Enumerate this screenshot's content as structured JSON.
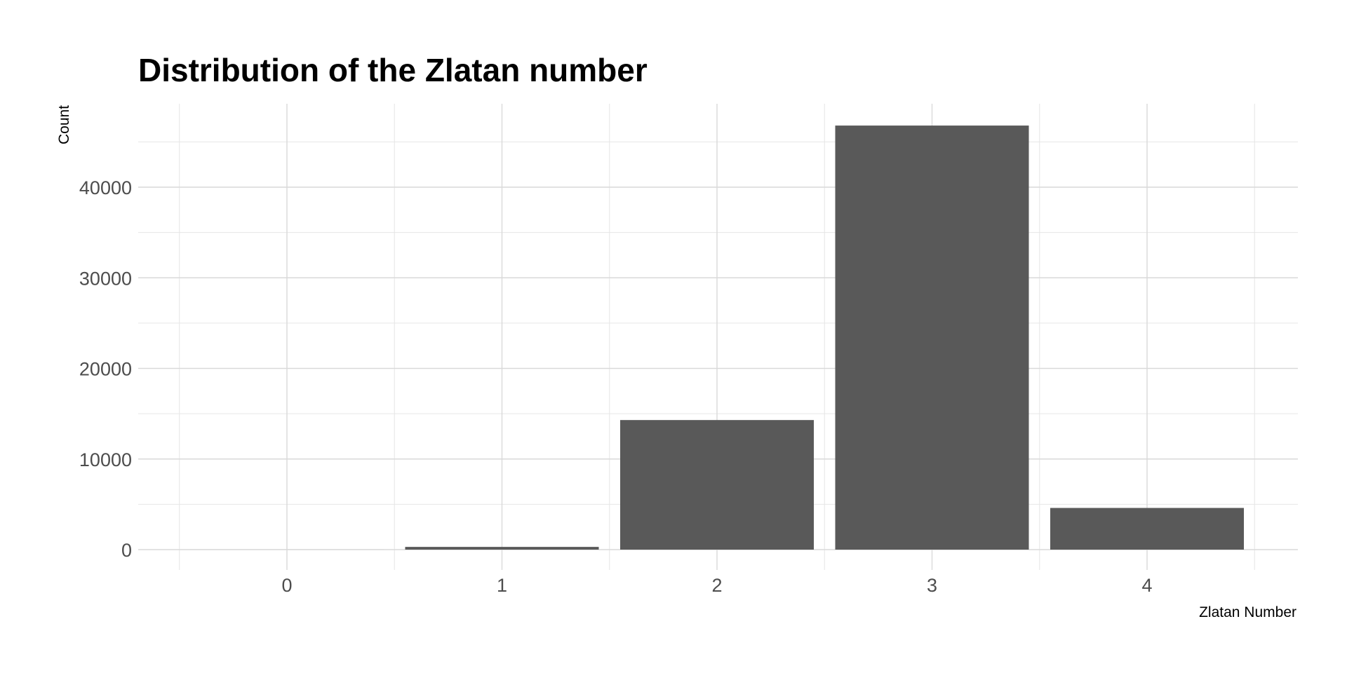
{
  "chart_data": {
    "type": "bar",
    "title": "Distribution of the Zlatan number",
    "xlabel": "Zlatan Number",
    "ylabel": "Count",
    "categories": [
      "0",
      "1",
      "2",
      "3",
      "4"
    ],
    "values": [
      1,
      300,
      14300,
      46800,
      4600
    ],
    "ylim": [
      0,
      49000
    ],
    "yticks": [
      "0",
      "10000",
      "20000",
      "30000",
      "40000"
    ],
    "grid": true,
    "legend": "none",
    "bar_color": "#595959",
    "grid_color": "#d9d9d9"
  }
}
